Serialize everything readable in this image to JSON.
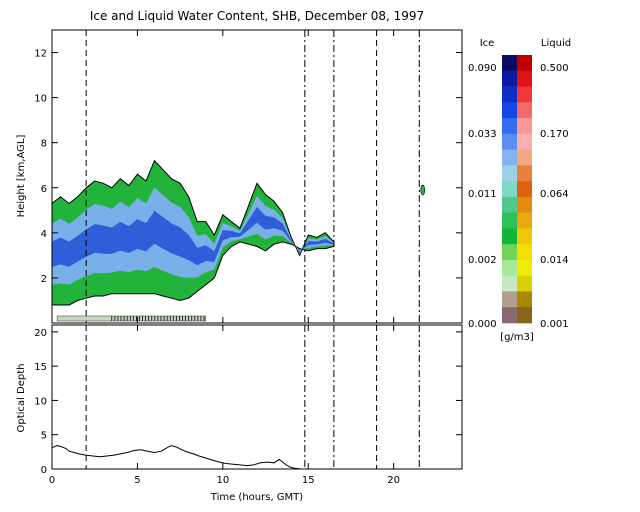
{
  "chart_data": [
    {
      "type": "heatmap",
      "title": "Ice and Liquid Water Content, SHB, December 08, 1997",
      "xlabel": "",
      "ylabel": "Height [km,AGL]",
      "xlim": [
        0,
        24
      ],
      "ylim": [
        0,
        13
      ],
      "xticks": [
        "0",
        "5",
        "10",
        "15",
        "20"
      ],
      "yticks": [
        "2",
        "4",
        "6",
        "8",
        "10",
        "12"
      ],
      "colorbar": {
        "ice_label": "Ice",
        "liquid_label": "Liquid",
        "units": "[g/m3]",
        "ice_ticks": [
          "0.090",
          "0.033",
          "0.011",
          "0.002",
          "0.000"
        ],
        "liquid_ticks": [
          "0.500",
          "0.170",
          "0.064",
          "0.014",
          "0.001"
        ],
        "ice_colors": [
          "#0a0a60",
          "#0c1aa0",
          "#0f2ec8",
          "#1546e6",
          "#2f6ef0",
          "#5a8ef2",
          "#86b2ee",
          "#9ed0ea",
          "#7ed8c6",
          "#50c88a",
          "#2fbf57",
          "#12b43a",
          "#6fd458",
          "#a8e89a",
          "#c8e8c4",
          "#b0a090",
          "#8a6870"
        ],
        "liquid_colors": [
          "#c00000",
          "#e01414",
          "#ee3838",
          "#f26a6a",
          "#f89898",
          "#f8b0b0",
          "#f0a880",
          "#e88040",
          "#e06010",
          "#e48a10",
          "#eaa80c",
          "#f0c80a",
          "#f4e000",
          "#f0ec00",
          "#d8d000",
          "#a88800",
          "#886418"
        ]
      },
      "dashed_lines_hours": [
        2,
        19
      ],
      "dashdot_lines_hours": [
        14.8,
        16.5,
        21.5
      ],
      "cloud_layer": {
        "time_hours": [
          0,
          0.5,
          1,
          1.5,
          2,
          2.5,
          3,
          3.5,
          4,
          4.5,
          5,
          5.5,
          6,
          6.5,
          7,
          7.5,
          8,
          8.5,
          9,
          9.5,
          10,
          10.5,
          11,
          11.5,
          12,
          12.5,
          13,
          13.5,
          14,
          14.5,
          15,
          15.5,
          16,
          16.5
        ],
        "base_km": [
          0.8,
          0.8,
          0.8,
          1.0,
          1.1,
          1.2,
          1.2,
          1.3,
          1.3,
          1.3,
          1.3,
          1.3,
          1.3,
          1.2,
          1.1,
          1.0,
          1.1,
          1.4,
          1.7,
          2.0,
          3.0,
          3.4,
          3.6,
          3.5,
          3.4,
          3.2,
          3.5,
          3.6,
          3.5,
          3.3,
          3.2,
          3.3,
          3.3,
          3.4
        ],
        "top_km": [
          5.3,
          5.6,
          5.3,
          5.6,
          6.0,
          6.3,
          6.2,
          6.0,
          6.4,
          6.1,
          6.6,
          6.3,
          7.2,
          6.8,
          6.4,
          6.2,
          5.6,
          4.5,
          4.5,
          3.9,
          4.8,
          4.5,
          4.2,
          5.2,
          6.2,
          5.7,
          5.4,
          4.9,
          3.8,
          3.0,
          3.9,
          3.8,
          4.0,
          3.6
        ],
        "max_ice_g_m3": 0.09
      }
    },
    {
      "type": "line",
      "title": "",
      "xlabel": "Time (hours, GMT)",
      "ylabel": "Optical Depth",
      "xlim": [
        0,
        24
      ],
      "ylim": [
        0,
        21
      ],
      "xticks": [
        "0",
        "5",
        "10",
        "15",
        "20"
      ],
      "yticks": [
        "0",
        "5",
        "10",
        "15",
        "20"
      ],
      "series": [
        {
          "x": [
            0,
            0.3,
            0.5,
            0.8,
            1.0,
            1.3,
            1.6,
            2.0,
            2.4,
            2.8,
            3.2,
            3.6,
            4.0,
            4.4,
            4.8,
            5.2,
            5.6,
            6.0,
            6.4,
            6.8,
            7.0,
            7.3,
            7.6,
            8.0,
            8.3,
            8.6,
            9.0,
            9.4,
            9.8,
            10.2,
            10.6,
            11.0,
            11.4,
            11.8,
            12.2,
            12.6,
            13.0,
            13.3,
            13.6,
            13.9,
            14.2,
            14.6,
            15.0,
            16.5
          ],
          "y": [
            3.1,
            3.4,
            3.3,
            3.0,
            2.6,
            2.4,
            2.2,
            2.0,
            1.9,
            1.8,
            1.9,
            2.0,
            2.2,
            2.4,
            2.7,
            2.8,
            2.6,
            2.4,
            2.6,
            3.2,
            3.4,
            3.2,
            2.8,
            2.4,
            2.2,
            1.9,
            1.6,
            1.3,
            1.0,
            0.8,
            0.7,
            0.6,
            0.5,
            0.6,
            0.9,
            1.0,
            0.9,
            1.4,
            0.8,
            0.3,
            0.1,
            0.0,
            0.0,
            0.0
          ]
        }
      ]
    }
  ]
}
